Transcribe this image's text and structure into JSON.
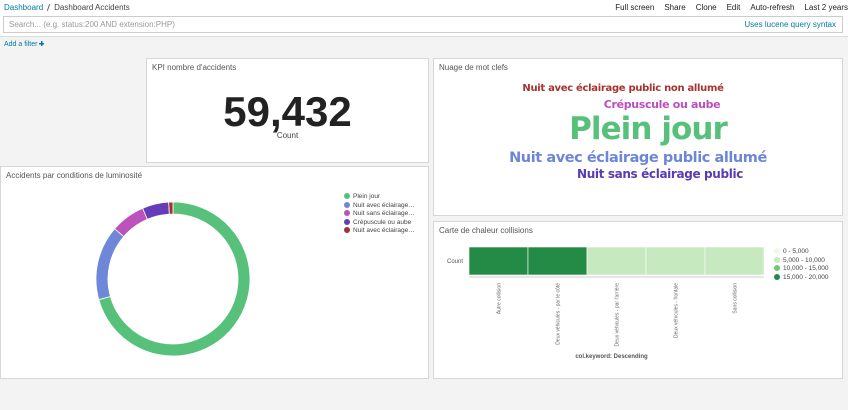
{
  "nav": {
    "breadcrumb": [
      "Dashboard",
      "Dashboard Accidents"
    ],
    "menu": [
      "Full screen",
      "Share",
      "Clone",
      "Edit",
      "Auto-refresh",
      "Last 2 years"
    ]
  },
  "query": {
    "placeholder": "Search... (e.g. status:200 AND extension:PHP)",
    "hint": "Uses lucene query syntax"
  },
  "filter": {
    "add": "Add a filter"
  },
  "panels": {
    "kpi": {
      "title": "KPI nombre d'accidents",
      "value": "59,432",
      "label": "Count"
    },
    "cloud": {
      "title": "Nuage de mot clefs",
      "words": [
        {
          "text": "Nuit avec éclairage public non allumé",
          "color": "#a8322e"
        },
        {
          "text": "Crépuscule ou aube",
          "color": "#bc4dbf"
        },
        {
          "text": "Plein jour",
          "color": "#57c17b"
        },
        {
          "text": "Nuit avec éclairage public allumé",
          "color": "#6d86d8"
        },
        {
          "text": "Nuit sans éclairage public",
          "color": "#5a3bb3"
        }
      ]
    },
    "donut": {
      "type": "pie",
      "title": "Accidents par conditions de luminosité",
      "categories": [
        "Plein jour",
        "Nuit avec éclairage public allumé",
        "Nuit sans éclairage public",
        "Crépuscule ou aube",
        "Nuit avec éclairage public non allumé"
      ],
      "values": [
        42000,
        9300,
        4300,
        3300,
        532
      ],
      "colors": [
        "#57c17b",
        "#6f87d8",
        "#bc52bc",
        "#663db8",
        "#9e3533"
      ]
    },
    "heatmap": {
      "type": "heatmap",
      "title": "Carte de chaleur collisions",
      "row": "Count",
      "categories": [
        "Autre collision",
        "Deux véhicules - par le côté",
        "Deux véhicules - par l'arrière",
        "Deux véhicules - frontale",
        "Sans collision"
      ],
      "values": [
        17500,
        16500,
        9000,
        8432,
        8000
      ],
      "x_title": "col.keyword: Descending",
      "ranges": [
        {
          "value": [
            0,
            5000
          ],
          "label": "0 - 5,000",
          "color": "#edf8e9"
        },
        {
          "value": [
            5000,
            10000
          ],
          "label": "5,000 - 10,000",
          "color": "#c6e9bf"
        },
        {
          "value": [
            10000,
            15000
          ],
          "label": "10,000 - 15,000",
          "color": "#74c476"
        },
        {
          "value": [
            15000,
            20000
          ],
          "label": "15,000 - 20,000",
          "color": "#238b45"
        }
      ]
    }
  }
}
